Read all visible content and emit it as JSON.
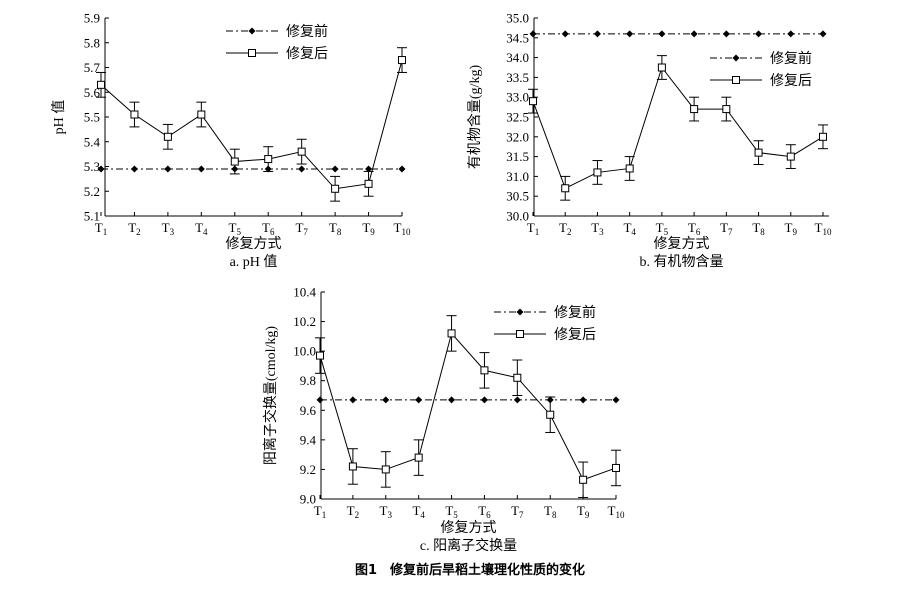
{
  "figure_caption": "图1　修复前后旱稻土壤理化性质的变化",
  "chart_data": [
    {
      "type": "line",
      "panel_label": "a. pH 值",
      "xlabel": "修复方式",
      "ylabel": "pH 值",
      "categories": [
        "T1",
        "T2",
        "T3",
        "T4",
        "T5",
        "T6",
        "T7",
        "T8",
        "T9",
        "T10"
      ],
      "ylim": [
        5.1,
        5.9
      ],
      "yticks": [
        "5.1",
        "5.2",
        "5.3",
        "5.4",
        "5.5",
        "5.6",
        "5.7",
        "5.8",
        "5.9"
      ],
      "legend_position": "top-right",
      "series": [
        {
          "name": "修复前",
          "style": "dash-dot-diamond",
          "values": [
            5.29,
            5.29,
            5.29,
            5.29,
            5.29,
            5.29,
            5.29,
            5.29,
            5.29,
            5.29
          ]
        },
        {
          "name": "修复后",
          "style": "solid-square",
          "values": [
            5.63,
            5.51,
            5.42,
            5.51,
            5.32,
            5.33,
            5.36,
            5.21,
            5.23,
            5.73
          ],
          "errors": [
            0.05,
            0.05,
            0.05,
            0.05,
            0.05,
            0.05,
            0.05,
            0.05,
            0.05,
            0.05
          ]
        }
      ]
    },
    {
      "type": "line",
      "panel_label": "b. 有机物含量",
      "xlabel": "修复方式",
      "ylabel": "有机物含量(g/kg)",
      "categories": [
        "T1",
        "T2",
        "T3",
        "T4",
        "T5",
        "T6",
        "T7",
        "T8",
        "T9",
        "T10"
      ],
      "ylim": [
        30.0,
        35.0
      ],
      "yticks": [
        "30.0",
        "30.5",
        "31.0",
        "31.5",
        "32.0",
        "32.5",
        "33.0",
        "33.5",
        "34.0",
        "34.5",
        "35.0"
      ],
      "legend_position": "top-right",
      "series": [
        {
          "name": "修复前",
          "style": "dash-dot-diamond",
          "values": [
            34.6,
            34.6,
            34.6,
            34.6,
            34.6,
            34.6,
            34.6,
            34.6,
            34.6,
            34.6
          ]
        },
        {
          "name": "修复后",
          "style": "solid-square",
          "values": [
            32.9,
            30.7,
            31.1,
            31.2,
            33.75,
            32.7,
            32.7,
            31.6,
            31.5,
            32.0
          ],
          "errors": [
            0.3,
            0.3,
            0.3,
            0.3,
            0.3,
            0.3,
            0.3,
            0.3,
            0.3,
            0.3
          ]
        }
      ]
    },
    {
      "type": "line",
      "panel_label": "c. 阳离子交换量",
      "xlabel": "修复方式",
      "ylabel": "阳离子交换量(cmol/kg)",
      "categories": [
        "T1",
        "T2",
        "T3",
        "T4",
        "T5",
        "T6",
        "T7",
        "T8",
        "T9",
        "T10"
      ],
      "ylim": [
        9.0,
        10.4
      ],
      "yticks": [
        "9.0",
        "9.2",
        "9.4",
        "9.6",
        "9.8",
        "10.0",
        "10.2",
        "10.4"
      ],
      "legend_position": "top-right",
      "series": [
        {
          "name": "修复前",
          "style": "dash-dot-diamond",
          "values": [
            9.67,
            9.67,
            9.67,
            9.67,
            9.67,
            9.67,
            9.67,
            9.67,
            9.67,
            9.67
          ]
        },
        {
          "name": "修复后",
          "style": "solid-square",
          "values": [
            9.97,
            9.22,
            9.2,
            9.28,
            10.12,
            9.87,
            9.82,
            9.57,
            9.13,
            9.21
          ],
          "errors": [
            0.12,
            0.12,
            0.12,
            0.12,
            0.12,
            0.12,
            0.12,
            0.12,
            0.12,
            0.12
          ]
        }
      ]
    }
  ]
}
